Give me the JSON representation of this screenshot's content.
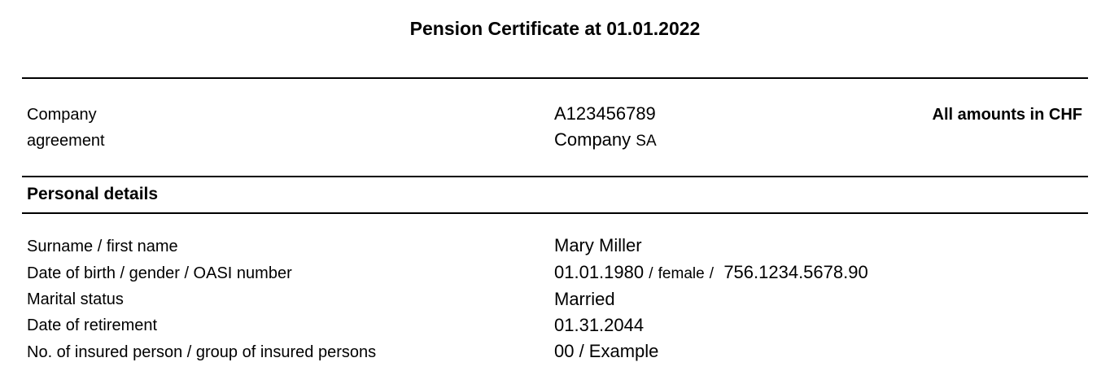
{
  "title": "Pension Certificate at 01.01.2022",
  "header": {
    "label_line1": "Company",
    "label_line2": "agreement",
    "agreement_number": "A123456789",
    "company_name": "Company",
    "company_suffix": "SA",
    "currency_note": "All amounts in CHF"
  },
  "personal_details": {
    "heading": "Personal details",
    "rows": [
      {
        "label": "Surname / first name",
        "value": "Mary Miller"
      },
      {
        "label": "Date of birth / gender / OASI number",
        "birth_date": "01.01.1980",
        "gender": "female",
        "oasi": "756.1234.5678.90"
      },
      {
        "label": "Marital status",
        "value": "Married"
      },
      {
        "label": "Date of retirement",
        "value": "01.31.2044"
      },
      {
        "label": "No. of insured person / group of insured persons",
        "value": "00 / Example"
      }
    ]
  }
}
